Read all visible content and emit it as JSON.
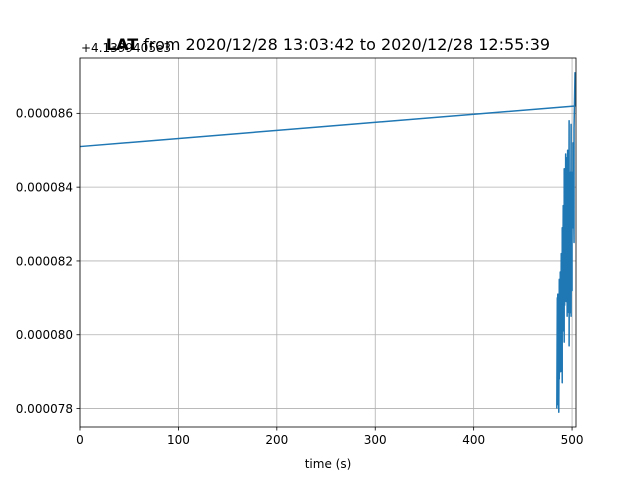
{
  "chart_data": {
    "type": "line",
    "title_bold": "LAT",
    "title_rest": " from 2020/12/28 13:03:42 to 2020/12/28 12:55:39",
    "xlabel": "time (s)",
    "ylabel": "",
    "y_offset_text": "+4.1399405e3",
    "xlim": [
      0,
      504
    ],
    "ylim": [
      7.75e-05,
      8.75e-05
    ],
    "x_ticks": [
      0,
      100,
      200,
      300,
      400,
      500
    ],
    "x_tick_labels": [
      "0",
      "100",
      "200",
      "300",
      "400",
      "500"
    ],
    "y_ticks": [
      7.8e-05,
      8e-05,
      8.2e-05,
      8.4e-05,
      8.6e-05
    ],
    "y_tick_labels": [
      "0.000078",
      "0.000080",
      "0.000082",
      "0.000084",
      "0.000086"
    ],
    "grid": true,
    "series": [
      {
        "color": "#1f77b4",
        "x": [
          0,
          503,
          503,
          502,
          502,
          501,
          501,
          500,
          500,
          499.5,
          499,
          499,
          498.5,
          498,
          498,
          497.5,
          497,
          497,
          496.5,
          496,
          496,
          495.5,
          495,
          495,
          494.5,
          494,
          494,
          493.5,
          493,
          493,
          492.5,
          492,
          492,
          491.5,
          491,
          491,
          490.5,
          490,
          490,
          489.5,
          489,
          489,
          488.5,
          488,
          488,
          487.5,
          487,
          487,
          486.5,
          486,
          486,
          485.5,
          485,
          485,
          484.5
        ],
        "y": [
          8.51e-05,
          8.62e-05,
          8.71e-05,
          8.56e-05,
          8.25e-05,
          8.52e-05,
          8.29e-05,
          8.44e-05,
          8.12e-05,
          8.42e-05,
          8.05e-05,
          8.57e-05,
          8.1e-05,
          8.44e-05,
          8.06e-05,
          8.43e-05,
          7.97e-05,
          8.58e-05,
          8.06e-05,
          8.38e-05,
          8.08e-05,
          8.5e-05,
          8.05e-05,
          8.48e-05,
          8.12e-05,
          8.46e-05,
          8.09e-05,
          8.49e-05,
          8.15e-05,
          8.34e-05,
          8.08e-05,
          8.45e-05,
          7.98e-05,
          8.27e-05,
          8.08e-05,
          8.35e-05,
          8.01e-05,
          8.29e-05,
          7.87e-05,
          8.21e-05,
          7.95e-05,
          8.22e-05,
          7.9e-05,
          8.17e-05,
          7.9e-05,
          8.12e-05,
          7.88e-05,
          8.15e-05,
          7.79e-05,
          8.06e-05,
          7.81e-05,
          8.11e-05,
          7.84e-05,
          8.1e-05,
          7.8e-05
        ]
      }
    ]
  }
}
